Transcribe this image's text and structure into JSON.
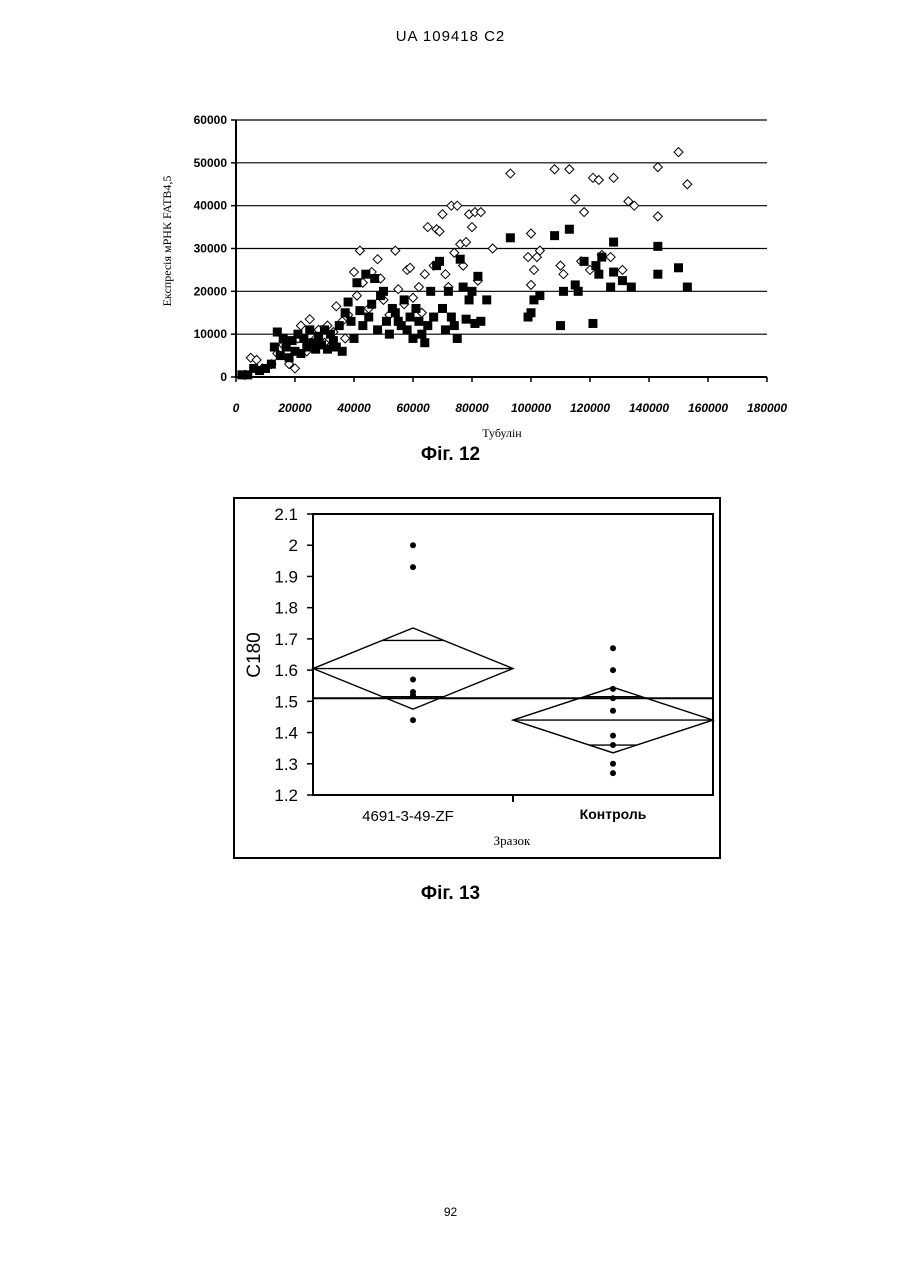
{
  "header": "UA   109418   C2",
  "page_number": "92",
  "figures": {
    "fig12_caption": "Фіг. 12",
    "fig13_caption": "Фіг. 13"
  },
  "chart_data": [
    {
      "type": "scatter",
      "title": "",
      "xlabel": "Тубулін",
      "ylabel": "Експресія мРНК FATB4,5",
      "xlim": [
        0,
        180000
      ],
      "ylim": [
        0,
        60000
      ],
      "x_ticks": [
        "0",
        "20000",
        "40000",
        "60000",
        "80000",
        "100000",
        "120000",
        "140000",
        "160000",
        "180000"
      ],
      "y_ticks": [
        "0",
        "10000",
        "20000",
        "30000",
        "40000",
        "50000",
        "60000"
      ],
      "grid": "horizontal",
      "series": [
        {
          "marker": "open-diamond",
          "points": [
            [
              3000,
              500
            ],
            [
              5000,
              4500
            ],
            [
              7000,
              4000
            ],
            [
              9000,
              2000
            ],
            [
              12000,
              3000
            ],
            [
              14000,
              5500
            ],
            [
              16000,
              7500
            ],
            [
              18000,
              3000
            ],
            [
              20000,
              2000
            ],
            [
              21000,
              9000
            ],
            [
              22000,
              12000
            ],
            [
              24000,
              6000
            ],
            [
              25000,
              13500
            ],
            [
              27000,
              9000
            ],
            [
              28000,
              11000
            ],
            [
              30000,
              8000
            ],
            [
              31000,
              12000
            ],
            [
              33000,
              10500
            ],
            [
              34000,
              16500
            ],
            [
              36000,
              13000
            ],
            [
              37000,
              9000
            ],
            [
              38000,
              14500
            ],
            [
              40000,
              24500
            ],
            [
              41000,
              19000
            ],
            [
              42000,
              29500
            ],
            [
              43000,
              22000
            ],
            [
              45000,
              16000
            ],
            [
              46000,
              24500
            ],
            [
              48000,
              27500
            ],
            [
              49000,
              23000
            ],
            [
              50000,
              18000
            ],
            [
              52000,
              14500
            ],
            [
              54000,
              29500
            ],
            [
              55000,
              20500
            ],
            [
              57000,
              17000
            ],
            [
              58000,
              25000
            ],
            [
              59000,
              25500
            ],
            [
              60000,
              18500
            ],
            [
              62000,
              21000
            ],
            [
              63000,
              15000
            ],
            [
              64000,
              24000
            ],
            [
              65000,
              35000
            ],
            [
              67000,
              26000
            ],
            [
              68000,
              34500
            ],
            [
              69000,
              34000
            ],
            [
              70000,
              38000
            ],
            [
              71000,
              24000
            ],
            [
              72000,
              21000
            ],
            [
              73000,
              40000
            ],
            [
              74000,
              29000
            ],
            [
              75000,
              40000
            ],
            [
              76000,
              31000
            ],
            [
              77000,
              26000
            ],
            [
              78000,
              31500
            ],
            [
              79000,
              38000
            ],
            [
              80000,
              35000
            ],
            [
              81000,
              38500
            ],
            [
              82000,
              22500
            ],
            [
              83000,
              38500
            ],
            [
              87000,
              30000
            ],
            [
              93000,
              47500
            ],
            [
              99000,
              28000
            ],
            [
              100000,
              21500
            ],
            [
              100000,
              33500
            ],
            [
              101000,
              25000
            ],
            [
              102000,
              28000
            ],
            [
              103000,
              29500
            ],
            [
              108000,
              48500
            ],
            [
              110000,
              26000
            ],
            [
              111000,
              24000
            ],
            [
              113000,
              48500
            ],
            [
              115000,
              41500
            ],
            [
              117000,
              27000
            ],
            [
              118000,
              38500
            ],
            [
              120000,
              25000
            ],
            [
              121000,
              46500
            ],
            [
              123000,
              46000
            ],
            [
              124000,
              28500
            ],
            [
              127000,
              28000
            ],
            [
              128000,
              46500
            ],
            [
              131000,
              25000
            ],
            [
              133000,
              41000
            ],
            [
              135000,
              40000
            ],
            [
              143000,
              49000
            ],
            [
              143000,
              37500
            ],
            [
              150000,
              52500
            ],
            [
              153000,
              45000
            ]
          ]
        },
        {
          "marker": "filled-square",
          "points": [
            [
              2000,
              500
            ],
            [
              4000,
              500
            ],
            [
              6000,
              2000
            ],
            [
              8000,
              1500
            ],
            [
              10000,
              2000
            ],
            [
              12000,
              3000
            ],
            [
              13000,
              7000
            ],
            [
              14000,
              10500
            ],
            [
              15000,
              5000
            ],
            [
              16000,
              9000
            ],
            [
              17000,
              7000
            ],
            [
              18000,
              4500
            ],
            [
              19000,
              8500
            ],
            [
              20000,
              6000
            ],
            [
              21000,
              10000
            ],
            [
              22000,
              5500
            ],
            [
              23000,
              9000
            ],
            [
              24000,
              7000
            ],
            [
              25000,
              11000
            ],
            [
              26000,
              8000
            ],
            [
              27000,
              6500
            ],
            [
              28000,
              9500
            ],
            [
              29000,
              7500
            ],
            [
              30000,
              11000
            ],
            [
              31000,
              6500
            ],
            [
              32000,
              10000
            ],
            [
              33000,
              8500
            ],
            [
              34000,
              7000
            ],
            [
              35000,
              12000
            ],
            [
              36000,
              6000
            ],
            [
              37000,
              15000
            ],
            [
              38000,
              17500
            ],
            [
              39000,
              13000
            ],
            [
              40000,
              9000
            ],
            [
              41000,
              22000
            ],
            [
              42000,
              15500
            ],
            [
              43000,
              12000
            ],
            [
              44000,
              24000
            ],
            [
              45000,
              14000
            ],
            [
              46000,
              17000
            ],
            [
              47000,
              23000
            ],
            [
              48000,
              11000
            ],
            [
              49000,
              19000
            ],
            [
              50000,
              20000
            ],
            [
              51000,
              13000
            ],
            [
              52000,
              10000
            ],
            [
              53000,
              16000
            ],
            [
              54000,
              15000
            ],
            [
              55000,
              13000
            ],
            [
              56000,
              12000
            ],
            [
              57000,
              18000
            ],
            [
              58000,
              11000
            ],
            [
              59000,
              14000
            ],
            [
              60000,
              9000
            ],
            [
              61000,
              16000
            ],
            [
              62000,
              13000
            ],
            [
              63000,
              10000
            ],
            [
              64000,
              8000
            ],
            [
              65000,
              12000
            ],
            [
              66000,
              20000
            ],
            [
              67000,
              14000
            ],
            [
              68000,
              26000
            ],
            [
              69000,
              27000
            ],
            [
              70000,
              16000
            ],
            [
              71000,
              11000
            ],
            [
              72000,
              20000
            ],
            [
              73000,
              14000
            ],
            [
              74000,
              12000
            ],
            [
              75000,
              9000
            ],
            [
              76000,
              27500
            ],
            [
              77000,
              21000
            ],
            [
              78000,
              13500
            ],
            [
              79000,
              18000
            ],
            [
              80000,
              20000
            ],
            [
              81000,
              12500
            ],
            [
              82000,
              23500
            ],
            [
              83000,
              13000
            ],
            [
              85000,
              18000
            ],
            [
              93000,
              32500
            ],
            [
              99000,
              14000
            ],
            [
              100000,
              15000
            ],
            [
              101000,
              18000
            ],
            [
              103000,
              19000
            ],
            [
              108000,
              33000
            ],
            [
              110000,
              12000
            ],
            [
              111000,
              20000
            ],
            [
              113000,
              34500
            ],
            [
              115000,
              21500
            ],
            [
              116000,
              20000
            ],
            [
              118000,
              27000
            ],
            [
              121000,
              12500
            ],
            [
              122000,
              26000
            ],
            [
              123000,
              24000
            ],
            [
              124000,
              28000
            ],
            [
              127000,
              21000
            ],
            [
              128000,
              24500
            ],
            [
              128000,
              31500
            ],
            [
              131000,
              22500
            ],
            [
              134000,
              21000
            ],
            [
              143000,
              30500
            ],
            [
              143000,
              24000
            ],
            [
              150000,
              25500
            ],
            [
              153000,
              21000
            ]
          ]
        }
      ]
    },
    {
      "type": "scatter",
      "title": "",
      "xlabel": "Зразок",
      "ylabel": "C180",
      "categories": [
        "4691-3-49-ZF",
        "Контроль"
      ],
      "ylim": [
        1.2,
        2.1
      ],
      "y_ticks": [
        "1.2",
        "1.3",
        "1.4",
        "1.5",
        "1.6",
        "1.7",
        "1.8",
        "1.9",
        "2",
        "2.1"
      ],
      "grand_mean": 1.51,
      "groups": [
        {
          "category": "4691-3-49-ZF",
          "mean": 1.605,
          "ci": [
            1.475,
            1.735
          ],
          "inner_lines": [
            1.515,
            1.695
          ],
          "values": [
            2.0,
            1.93,
            1.57,
            1.53,
            1.52,
            1.44
          ]
        },
        {
          "category": "Контроль",
          "mean": 1.44,
          "ci": [
            1.335,
            1.545
          ],
          "inner_lines": [
            1.36,
            1.515
          ],
          "values": [
            1.67,
            1.6,
            1.54,
            1.51,
            1.47,
            1.39,
            1.36,
            1.3,
            1.27
          ]
        }
      ]
    }
  ]
}
